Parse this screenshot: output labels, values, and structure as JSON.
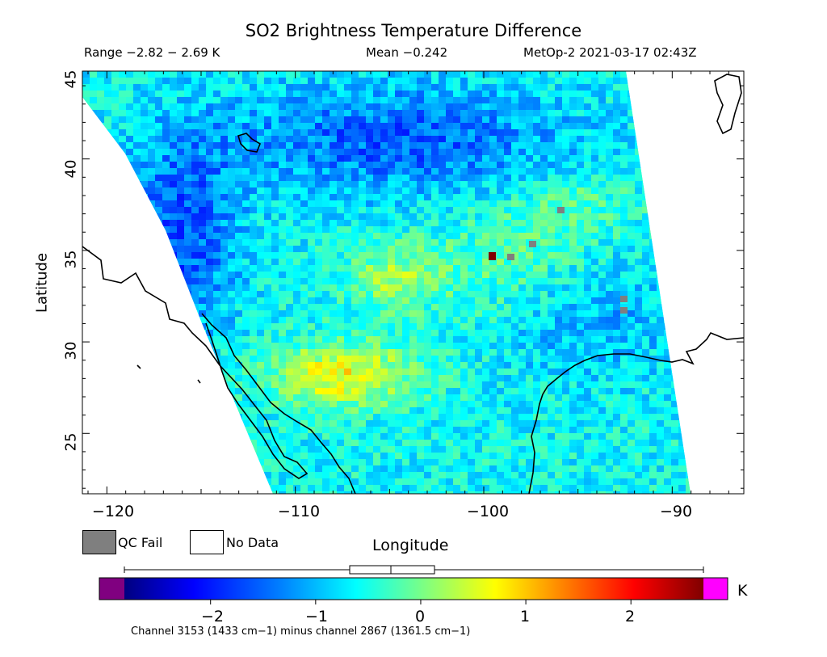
{
  "header": {
    "title": "SO2 Brightness Temperature Difference",
    "range": "Range −2.82 − 2.69 K",
    "mean": "Mean −0.242",
    "satellite_time": "MetOp-2 2021-03-17 02:43Z"
  },
  "axes": {
    "xlabel": "Longitude",
    "ylabel": "Latitude",
    "x_ticks": [
      "−120",
      "−110",
      "−100",
      "−90"
    ],
    "y_ticks": [
      "45",
      "40",
      "35",
      "30",
      "25"
    ],
    "xlim": [
      -121.3,
      -86.2
    ],
    "ylim": [
      21.7,
      44.8
    ]
  },
  "legend": {
    "qc_fail_label": "QC Fail",
    "no_data_label": "No Data",
    "qc_fail_color": "#7f7f7f",
    "no_data_color": "#ffffff"
  },
  "colorbar": {
    "ticks": [
      "−2",
      "−1",
      "0",
      "1",
      "2"
    ],
    "tick_values": [
      -2,
      -1,
      0,
      1,
      2
    ],
    "range": [
      -2.82,
      2.69
    ],
    "unit": "K",
    "under_color": "#800080",
    "over_color": "#ff00ff",
    "stops": [
      "#000080",
      "#0000ff",
      "#0080ff",
      "#00ffff",
      "#80ff80",
      "#ffff00",
      "#ff8000",
      "#ff0000",
      "#800000"
    ],
    "mean_value": -0.242
  },
  "footer": {
    "channel_note": "Channel 3153 (1433 cm−1) minus channel 2867 (1361.5 cm−1)"
  },
  "colors": {
    "background_field": "#38d0e8",
    "cool_region": "#1f7fe0",
    "warm_region": "#f4a020"
  }
}
